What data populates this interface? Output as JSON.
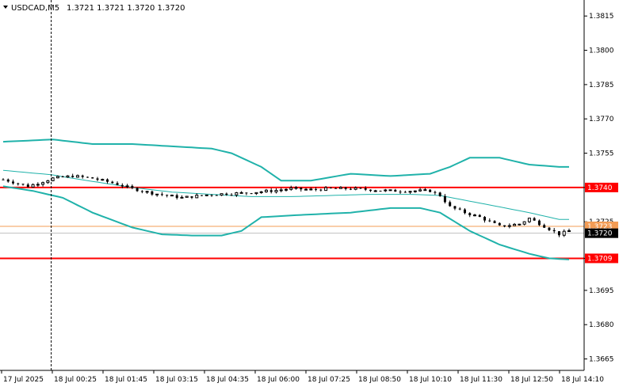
{
  "header": {
    "symbol": "USDCAD,M5",
    "ohlc": "1.3721 1.3721 1.3720 1.3720",
    "dropdown_icon": "triangle-down-icon"
  },
  "chart_data": {
    "type": "candlestick",
    "symbol": "USDCAD",
    "timeframe": "M5",
    "ylim": [
      1.366,
      1.3822
    ],
    "y_ticks": [
      1.3815,
      1.38,
      1.3785,
      1.377,
      1.3755,
      1.374,
      1.3725,
      1.3709,
      1.3695,
      1.368,
      1.3665
    ],
    "y_tick_labels": [
      "1.3815",
      "1.3800",
      "1.3785",
      "1.3770",
      "1.3755",
      "1.3725",
      "1.3695",
      "1.3680",
      "1.3665"
    ],
    "x_tick_labels": [
      "17 Jul 2025",
      "18 Jul 00:25",
      "18 Jul 01:45",
      "18 Jul 03:15",
      "18 Jul 04:35",
      "18 Jul 06:00",
      "18 Jul 07:25",
      "18 Jul 08:50",
      "18 Jul 10:10",
      "18 Jul 11:30",
      "18 Jul 12:50",
      "18 Jul 14:10"
    ],
    "bars_count": 115,
    "close_path": [
      [
        0,
        1.37435
      ],
      [
        5,
        1.37405
      ],
      [
        10,
        1.3744
      ],
      [
        14,
        1.3745
      ],
      [
        18,
        1.3744
      ],
      [
        22,
        1.3742
      ],
      [
        26,
        1.37395
      ],
      [
        30,
        1.37375
      ],
      [
        36,
        1.37355
      ],
      [
        42,
        1.3737
      ],
      [
        48,
        1.37375
      ],
      [
        54,
        1.37385
      ],
      [
        58,
        1.37395
      ],
      [
        62,
        1.3739
      ],
      [
        66,
        1.37395
      ],
      [
        70,
        1.37395
      ],
      [
        74,
        1.3739
      ],
      [
        78,
        1.37385
      ],
      [
        82,
        1.37385
      ],
      [
        86,
        1.37385
      ],
      [
        88,
        1.37365
      ],
      [
        90,
        1.37315
      ],
      [
        93,
        1.3729
      ],
      [
        96,
        1.3727
      ],
      [
        100,
        1.3723
      ],
      [
        104,
        1.3724
      ],
      [
        106,
        1.37265
      ],
      [
        109,
        1.3723
      ],
      [
        112,
        1.37195
      ],
      [
        114,
        1.3721
      ]
    ],
    "indicators": {
      "bollinger_upper": [
        [
          0,
          1.376
        ],
        [
          10,
          1.3761
        ],
        [
          14,
          1.376
        ],
        [
          18,
          1.3759
        ],
        [
          26,
          1.3759
        ],
        [
          34,
          1.3758
        ],
        [
          42,
          1.3757
        ],
        [
          46,
          1.3755
        ],
        [
          52,
          1.3749
        ],
        [
          56,
          1.3743
        ],
        [
          62,
          1.3743
        ],
        [
          70,
          1.3746
        ],
        [
          78,
          1.3745
        ],
        [
          86,
          1.3746
        ],
        [
          90,
          1.3749
        ],
        [
          94,
          1.3753
        ],
        [
          100,
          1.3753
        ],
        [
          106,
          1.375
        ],
        [
          112,
          1.3749
        ]
      ],
      "bollinger_middle": [
        [
          0,
          1.37475
        ],
        [
          10,
          1.37455
        ],
        [
          14,
          1.3744
        ],
        [
          20,
          1.3742
        ],
        [
          26,
          1.374
        ],
        [
          34,
          1.3738
        ],
        [
          42,
          1.3737
        ],
        [
          50,
          1.3736
        ],
        [
          58,
          1.3736
        ],
        [
          66,
          1.37365
        ],
        [
          74,
          1.3737
        ],
        [
          82,
          1.3737
        ],
        [
          88,
          1.37365
        ],
        [
          94,
          1.3734
        ],
        [
          100,
          1.37315
        ],
        [
          106,
          1.3729
        ],
        [
          112,
          1.3726
        ]
      ],
      "bollinger_lower": [
        [
          0,
          1.37405
        ],
        [
          6,
          1.37385
        ],
        [
          12,
          1.37355
        ],
        [
          18,
          1.3729
        ],
        [
          26,
          1.37225
        ],
        [
          32,
          1.37195
        ],
        [
          38,
          1.3719
        ],
        [
          44,
          1.3719
        ],
        [
          48,
          1.3721
        ],
        [
          52,
          1.3727
        ],
        [
          60,
          1.3728
        ],
        [
          70,
          1.3729
        ],
        [
          78,
          1.3731
        ],
        [
          84,
          1.3731
        ],
        [
          88,
          1.3729
        ],
        [
          94,
          1.3721
        ],
        [
          100,
          1.3715
        ],
        [
          106,
          1.3711
        ],
        [
          110,
          1.3709
        ],
        [
          114,
          1.37085
        ]
      ]
    },
    "horizontal_levels": [
      {
        "price": 1.374,
        "label": "1.3740",
        "color": "#ff0000"
      },
      {
        "price": 1.3709,
        "label": "1.3709",
        "color": "#ff0000"
      },
      {
        "price": 1.3723,
        "label": "1.3723",
        "color": "#f39c55"
      },
      {
        "price": 1.372,
        "label": "1.3720",
        "color": "#000000"
      }
    ],
    "session_separator_bar": 10,
    "colors": {
      "candles": "#000000",
      "bollinger": "#20b2aa",
      "level_line": "#ff0000",
      "ask_line": "#f39c55",
      "bid_line": "#c0c0c0",
      "background": "#ffffff"
    },
    "grid": false
  }
}
